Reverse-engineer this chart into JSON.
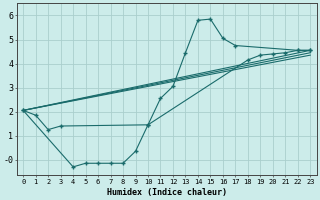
{
  "title": "",
  "xlabel": "Humidex (Indice chaleur)",
  "background_color": "#ccecea",
  "grid_color": "#aacfcd",
  "line_color": "#1a6b6b",
  "xlim": [
    -0.5,
    23.5
  ],
  "ylim": [
    -0.65,
    6.5
  ],
  "xticks": [
    0,
    1,
    2,
    3,
    4,
    5,
    6,
    7,
    8,
    9,
    10,
    11,
    12,
    13,
    14,
    15,
    16,
    17,
    18,
    19,
    20,
    21,
    22,
    23
  ],
  "yticks": [
    0,
    1,
    2,
    3,
    4,
    5,
    6
  ],
  "ytick_labels": [
    "-0",
    "1",
    "2",
    "3",
    "4",
    "5",
    "6"
  ],
  "line0_x": [
    0,
    1,
    2,
    3,
    10,
    11,
    12,
    13,
    14,
    15,
    16,
    17,
    22,
    23
  ],
  "line0_y": [
    2.05,
    1.85,
    1.25,
    1.4,
    1.45,
    2.55,
    3.05,
    4.45,
    5.8,
    5.85,
    5.05,
    4.75,
    4.55,
    4.55
  ],
  "line1_x": [
    0,
    4,
    5,
    6,
    7,
    8,
    9,
    10,
    18,
    19,
    20,
    21,
    22,
    23
  ],
  "line1_y": [
    2.05,
    -0.3,
    -0.15,
    -0.15,
    -0.15,
    -0.15,
    0.35,
    1.45,
    4.15,
    4.35,
    4.4,
    4.45,
    4.55,
    4.55
  ],
  "line2_x": [
    0,
    23
  ],
  "line2_y": [
    2.05,
    4.55
  ],
  "line3_x": [
    0,
    23
  ],
  "line3_y": [
    2.05,
    4.45
  ],
  "line4_x": [
    0,
    23
  ],
  "line4_y": [
    2.05,
    4.35
  ],
  "lw": 0.8,
  "ms": 2.5,
  "xlabel_fontsize": 6,
  "tick_fontsize": 5
}
